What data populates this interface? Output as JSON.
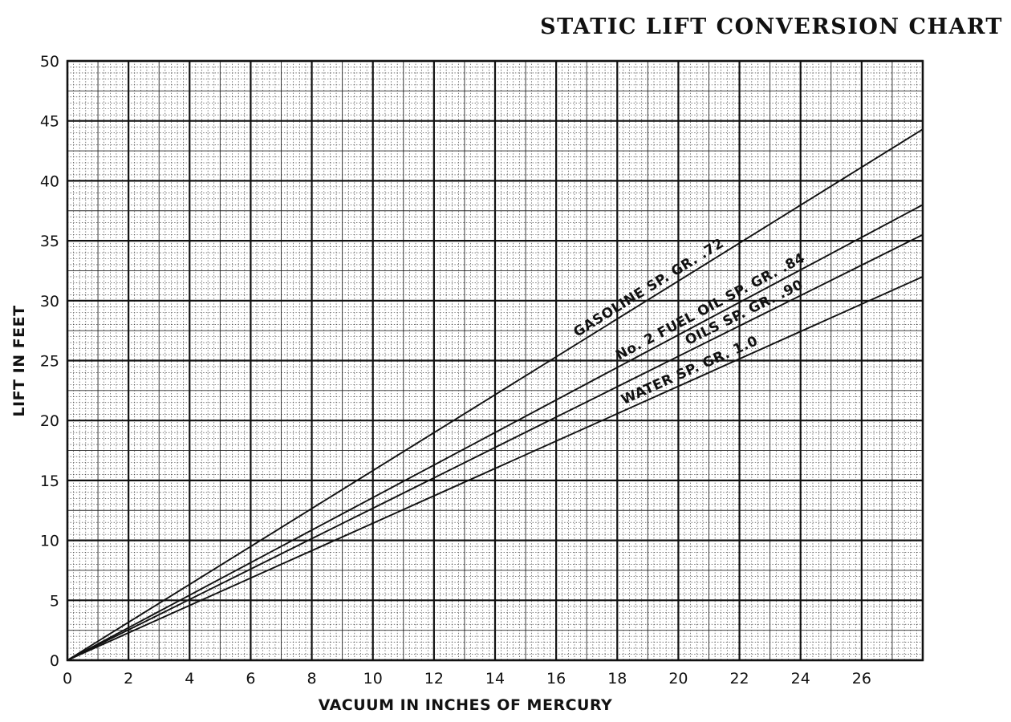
{
  "chart_data": {
    "type": "line",
    "title": "STATIC LIFT CONVERSION CHART",
    "xlabel": "VACUUM IN INCHES OF MERCURY",
    "ylabel": "LIFT IN FEET",
    "xlim": [
      0,
      28
    ],
    "ylim": [
      0,
      50
    ],
    "x_ticks": [
      "0",
      "2",
      "4",
      "6",
      "8",
      "10",
      "12",
      "14",
      "16",
      "18",
      "20",
      "22",
      "24",
      "26"
    ],
    "y_ticks": [
      "0",
      "5",
      "10",
      "15",
      "20",
      "25",
      "30",
      "35",
      "40",
      "45",
      "50"
    ],
    "grid": true,
    "series": [
      {
        "name": "GASOLINE SP. GR. .72",
        "x": [
          0,
          28
        ],
        "y": [
          0,
          44.3
        ]
      },
      {
        "name": "No. 2 FUEL OIL SP. GR. .84",
        "x": [
          0,
          28
        ],
        "y": [
          0,
          38.0
        ]
      },
      {
        "name": "OILS SP. GR. .90",
        "x": [
          0,
          28
        ],
        "y": [
          0,
          35.5
        ]
      },
      {
        "name": "WATER SP. GR. 1.0",
        "x": [
          0,
          28
        ],
        "y": [
          0,
          32.0
        ]
      }
    ]
  }
}
